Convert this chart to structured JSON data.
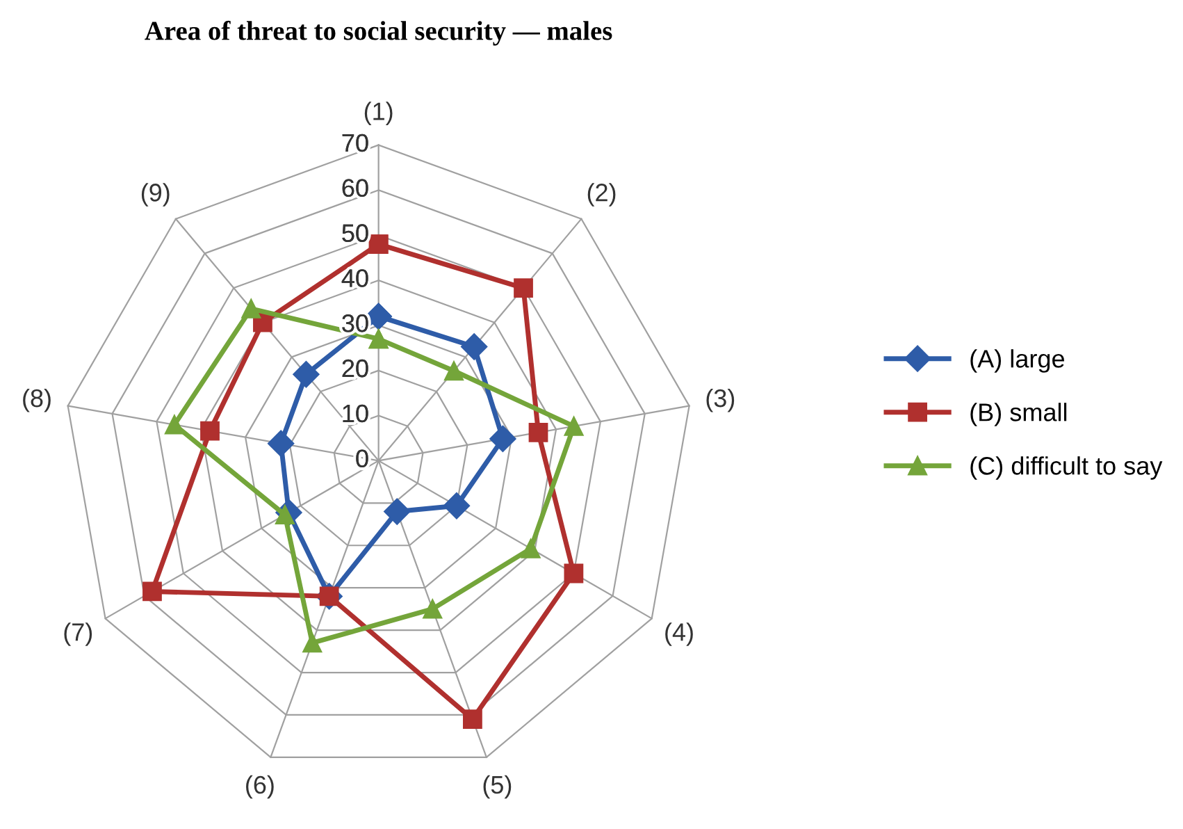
{
  "chart_data": {
    "type": "radar",
    "title": "Area of threat to social security — males",
    "categories": [
      "(1)",
      "(2)",
      "(3)",
      "(4)",
      "(5)",
      "(6)",
      "(7)",
      "(8)",
      "(9)"
    ],
    "ylim": [
      0,
      70
    ],
    "yticks": [
      0,
      10,
      20,
      30,
      40,
      50,
      60,
      70
    ],
    "grid": true,
    "legend": "right",
    "series": [
      {
        "name": "(A) large",
        "color": "#2e5ca8",
        "marker": "diamond",
        "values": [
          32,
          33,
          28,
          20,
          12,
          32,
          23,
          22,
          25
        ]
      },
      {
        "name": "(B) small",
        "color": "#b0302e",
        "marker": "square",
        "values": [
          48,
          50,
          36,
          50,
          61,
          32,
          58,
          38,
          40
        ]
      },
      {
        "name": "(C) difficult to say",
        "color": "#74a53a",
        "marker": "triangle",
        "values": [
          27,
          26,
          44,
          39,
          35,
          43,
          24,
          46,
          44
        ]
      }
    ]
  }
}
